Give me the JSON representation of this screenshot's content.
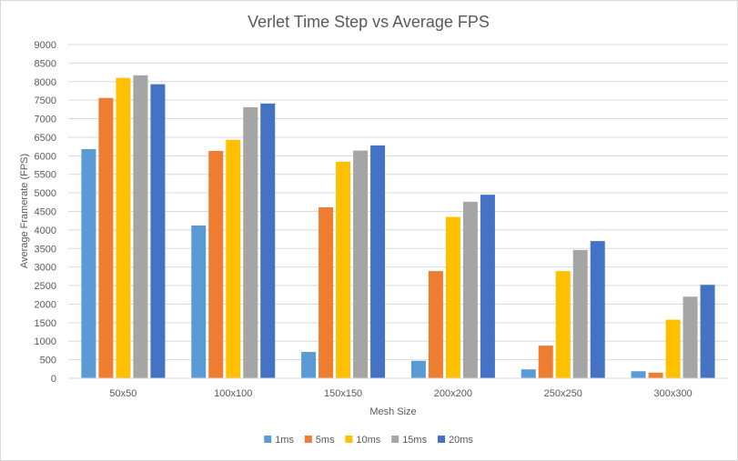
{
  "chart_data": {
    "type": "bar",
    "title": "Verlet Time Step vs Average FPS",
    "xlabel": "Mesh Size",
    "ylabel": "Average Framerate (FPS)",
    "ylim": [
      0,
      9000
    ],
    "ytick_step": 500,
    "yticks": [
      "0",
      "500",
      "1000",
      "1500",
      "2000",
      "2500",
      "3000",
      "3500",
      "4000",
      "4500",
      "5000",
      "5500",
      "6000",
      "6500",
      "7000",
      "7500",
      "8000",
      "8500",
      "9000"
    ],
    "grid": true,
    "legend_position": "bottom-center",
    "categories": [
      "50x50",
      "100x100",
      "150x150",
      "200x200",
      "250x250",
      "300x300"
    ],
    "series": [
      {
        "name": "1ms",
        "color": "#5b9bd5",
        "values": [
          6180,
          4120,
          710,
          470,
          240,
          190
        ]
      },
      {
        "name": "5ms",
        "color": "#ed7d31",
        "values": [
          7560,
          6130,
          4610,
          2890,
          880,
          150
        ]
      },
      {
        "name": "10ms",
        "color": "#ffc000",
        "values": [
          8100,
          6430,
          5840,
          4350,
          2890,
          1580
        ]
      },
      {
        "name": "15ms",
        "color": "#a5a5a5",
        "values": [
          8170,
          7310,
          6140,
          4760,
          3460,
          2200
        ]
      },
      {
        "name": "20ms",
        "color": "#4472c4",
        "values": [
          7930,
          7410,
          6280,
          4950,
          3700,
          2520
        ]
      }
    ]
  }
}
